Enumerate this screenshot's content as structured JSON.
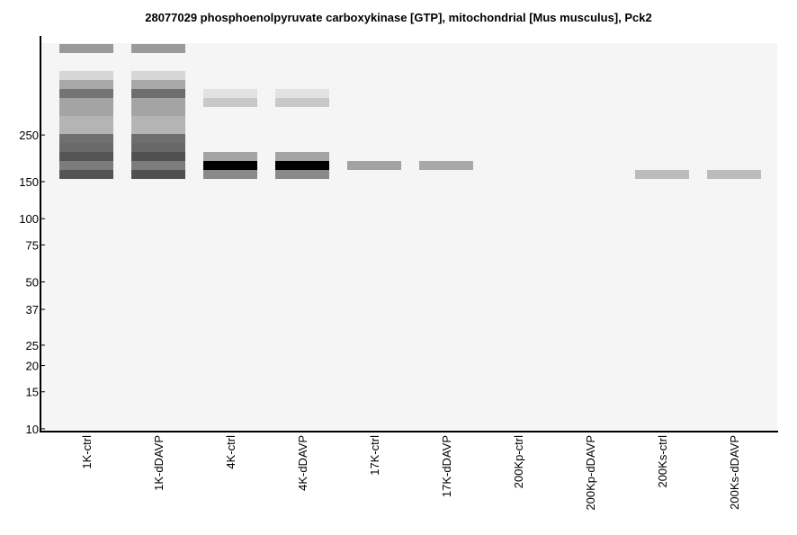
{
  "chart_data": {
    "type": "heatmap",
    "title": "28077029 phosphoenolpyruvate carboxykinase [GTP], mitochondrial [Mus musculus], Pck2",
    "xlabel": "",
    "ylabel": "",
    "y_ticks": [
      {
        "label": "250",
        "value": 250
      },
      {
        "label": "150",
        "value": 150
      },
      {
        "label": "100",
        "value": 100
      },
      {
        "label": "75",
        "value": 75
      },
      {
        "label": "50",
        "value": 50
      },
      {
        "label": "37",
        "value": 37
      },
      {
        "label": "25",
        "value": 25
      },
      {
        "label": "20",
        "value": 20
      },
      {
        "label": "15",
        "value": 15
      },
      {
        "label": "10",
        "value": 10
      }
    ],
    "lanes": [
      "1K-ctrl",
      "1K-dDAVP",
      "4K-ctrl",
      "4K-dDAVP",
      "17K-ctrl",
      "17K-dDAVP",
      "200Kp-ctrl",
      "200Kp-dDAVP",
      "200Ks-ctrl",
      "200Ks-dDAVP"
    ],
    "bands": [
      {
        "lane": 0,
        "row": 0,
        "color": "#9a9a9a"
      },
      {
        "lane": 0,
        "row": 3,
        "color": "#d6d6d6"
      },
      {
        "lane": 0,
        "row": 4,
        "color": "#a8a8a8"
      },
      {
        "lane": 0,
        "row": 5,
        "color": "#747474"
      },
      {
        "lane": 0,
        "row": 6,
        "color": "#a4a4a4"
      },
      {
        "lane": 0,
        "row": 7,
        "color": "#a4a4a4"
      },
      {
        "lane": 0,
        "row": 8,
        "color": "#b4b4b4"
      },
      {
        "lane": 0,
        "row": 9,
        "color": "#b4b4b4"
      },
      {
        "lane": 0,
        "row": 10,
        "color": "#707070"
      },
      {
        "lane": 0,
        "row": 11,
        "color": "#6a6a6a"
      },
      {
        "lane": 0,
        "row": 12,
        "color": "#545454"
      },
      {
        "lane": 0,
        "row": 13,
        "color": "#7c7c7c"
      },
      {
        "lane": 0,
        "row": 14,
        "color": "#545454"
      },
      {
        "lane": 1,
        "row": 0,
        "color": "#9a9a9a"
      },
      {
        "lane": 1,
        "row": 3,
        "color": "#d6d6d6"
      },
      {
        "lane": 1,
        "row": 4,
        "color": "#a8a8a8"
      },
      {
        "lane": 1,
        "row": 5,
        "color": "#6e6e6e"
      },
      {
        "lane": 1,
        "row": 6,
        "color": "#a4a4a4"
      },
      {
        "lane": 1,
        "row": 7,
        "color": "#a4a4a4"
      },
      {
        "lane": 1,
        "row": 8,
        "color": "#b4b4b4"
      },
      {
        "lane": 1,
        "row": 9,
        "color": "#b4b4b4"
      },
      {
        "lane": 1,
        "row": 10,
        "color": "#6e6e6e"
      },
      {
        "lane": 1,
        "row": 11,
        "color": "#686868"
      },
      {
        "lane": 1,
        "row": 12,
        "color": "#505050"
      },
      {
        "lane": 1,
        "row": 13,
        "color": "#7c7c7c"
      },
      {
        "lane": 1,
        "row": 14,
        "color": "#505050"
      },
      {
        "lane": 2,
        "row": 5,
        "color": "#e2e2e2"
      },
      {
        "lane": 2,
        "row": 6,
        "color": "#c8c8c8"
      },
      {
        "lane": 2,
        "row": 12,
        "color": "#a4a4a4"
      },
      {
        "lane": 2,
        "row": 13,
        "color": "#000000"
      },
      {
        "lane": 2,
        "row": 14,
        "color": "#8a8a8a"
      },
      {
        "lane": 3,
        "row": 5,
        "color": "#e2e2e2"
      },
      {
        "lane": 3,
        "row": 6,
        "color": "#c8c8c8"
      },
      {
        "lane": 3,
        "row": 12,
        "color": "#a4a4a4"
      },
      {
        "lane": 3,
        "row": 13,
        "color": "#000000"
      },
      {
        "lane": 3,
        "row": 14,
        "color": "#8a8a8a"
      },
      {
        "lane": 4,
        "row": 13,
        "color": "#a2a2a2"
      },
      {
        "lane": 5,
        "row": 13,
        "color": "#a8a8a8"
      },
      {
        "lane": 8,
        "row": 14,
        "color": "#bcbcbc"
      },
      {
        "lane": 9,
        "row": 14,
        "color": "#bcbcbc"
      }
    ]
  }
}
